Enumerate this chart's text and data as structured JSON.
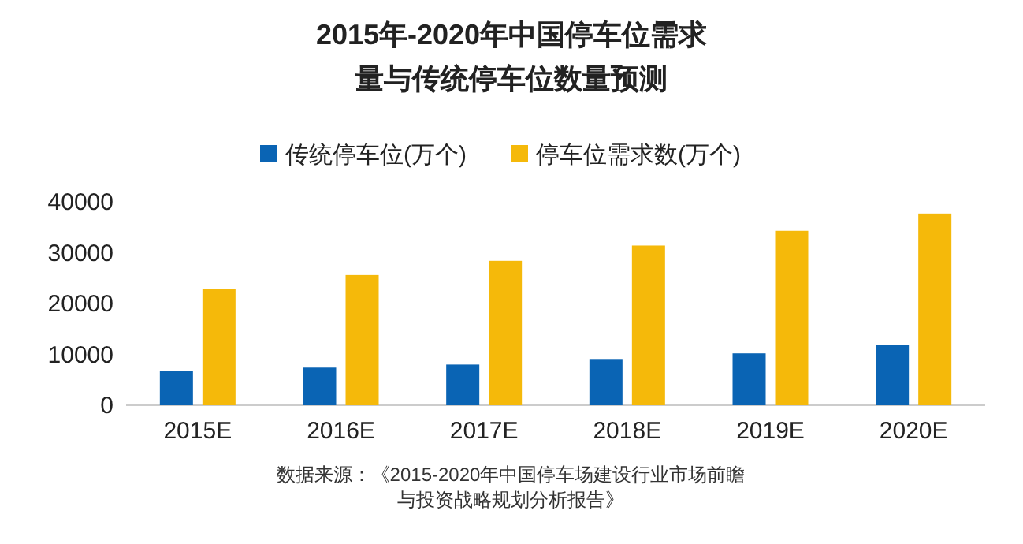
{
  "chart_data": {
    "type": "bar",
    "title": "2015年-2020年中国停车位需求量与传统停车位数量预测",
    "categories": [
      "2015E",
      "2016E",
      "2017E",
      "2018E",
      "2019E",
      "2020E"
    ],
    "series": [
      {
        "name": "传统停车位(万个)",
        "color": "#0a64b4",
        "values": [
          6800,
          7400,
          8000,
          9100,
          10200,
          11800
        ]
      },
      {
        "name": "停车位需求数(万个)",
        "color": "#f5b90a",
        "values": [
          22800,
          25600,
          28400,
          31400,
          34300,
          37700
        ]
      }
    ],
    "ylim": [
      0,
      40000
    ],
    "yticks": [
      0,
      10000,
      20000,
      30000,
      40000
    ],
    "grid": false,
    "legend": "top",
    "annotations": [
      "数据来源：《2015-2020年中国停车场建设行业市场前瞻与投资战略规划分析报告》"
    ]
  }
}
